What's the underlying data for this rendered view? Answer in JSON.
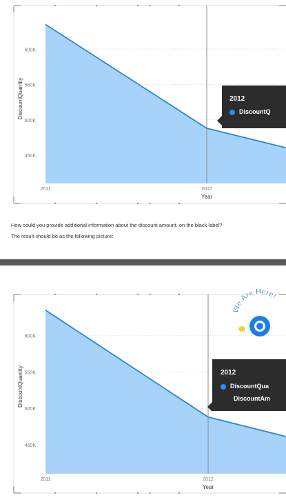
{
  "colors": {
    "area_fill": "#a7d3fb",
    "line": "#2a86d6",
    "tooltip_bg": "#2c2c2c",
    "tooltip_dot": "#1e90ff",
    "badge_text": "#2a86d6",
    "badge_circle": "#1e7fe0"
  },
  "top_panel": {
    "question_text": "How could you provide additional information about the discount amount, on the black label?",
    "result_text": "The result should be as the following picture:",
    "tooltip": {
      "title": "2012",
      "lines": [
        "DiscountQ"
      ]
    }
  },
  "bottom_panel": {
    "tooltip": {
      "title": "2012",
      "lines": [
        "DiscountQua",
        "DiscountAm"
      ]
    },
    "badge_text": "We Are Here!"
  },
  "chart_data": [
    {
      "type": "area",
      "title": "",
      "xlabel": "Year",
      "ylabel": "DiscountQuantity",
      "x": [
        2011,
        2012,
        2012.5
      ],
      "x_tick_labels": [
        "2011",
        "2012"
      ],
      "y_tick_labels": [
        "600K",
        "550K",
        "500K",
        "450K"
      ],
      "series": [
        {
          "values": [
            635000,
            488000,
            460000
          ]
        }
      ],
      "ylim": [
        410000,
        650000
      ],
      "grid": true
    },
    {
      "type": "area",
      "title": "",
      "xlabel": "Year",
      "ylabel": "DiscountQuantity",
      "x": [
        2011,
        2012,
        2012.5
      ],
      "x_tick_labels": [
        "2011",
        "2012"
      ],
      "y_tick_labels": [
        "600K",
        "550K",
        "500K",
        "450K"
      ],
      "series": [
        {
          "values": [
            635000,
            488000,
            460000
          ]
        }
      ],
      "ylim": [
        410000,
        650000
      ],
      "grid": true
    }
  ]
}
